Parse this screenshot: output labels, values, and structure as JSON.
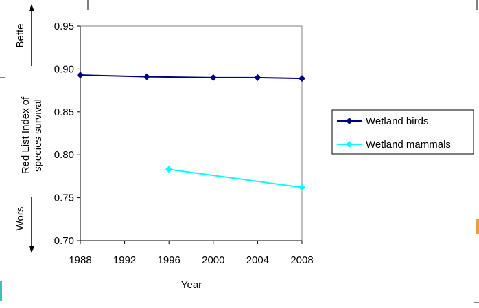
{
  "chart_data": {
    "type": "line",
    "xlabel": "Year",
    "ylabel_line1": "Red List Index of",
    "ylabel_line2": "species survival",
    "better_label": "Bette",
    "worse_label": "Wors",
    "x_ticks": [
      "1988",
      "1992",
      "1996",
      "2000",
      "2004",
      "2008"
    ],
    "y_ticks": [
      "0.70",
      "0.75",
      "0.80",
      "0.85",
      "0.90",
      "0.95"
    ],
    "xlim": [
      1988,
      2008
    ],
    "ylim": [
      0.7,
      0.95
    ],
    "grid": false,
    "legend_position": "right",
    "series": [
      {
        "name": "Wetland birds",
        "color": "#000080",
        "marker": "diamond",
        "x": [
          1988,
          1994,
          2000,
          2004,
          2008
        ],
        "y": [
          0.893,
          0.891,
          0.89,
          0.89,
          0.889
        ]
      },
      {
        "name": "Wetland mammals",
        "color": "#00ffff",
        "marker": "diamond",
        "x": [
          1996,
          2008
        ],
        "y": [
          0.783,
          0.762
        ]
      }
    ]
  }
}
